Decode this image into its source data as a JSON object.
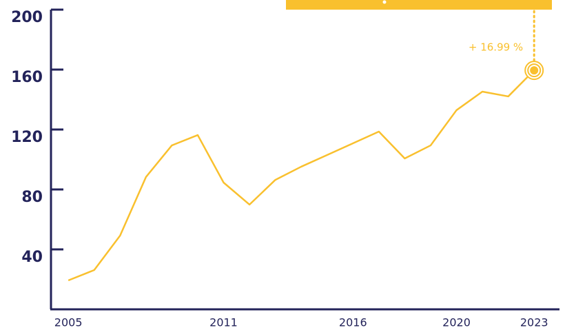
{
  "chart_data": {
    "type": "line",
    "x": [
      2005,
      2006,
      2007,
      2008,
      2009,
      2010,
      2011,
      2012,
      2013,
      2014,
      2015,
      2016,
      2017,
      2018,
      2019,
      2020,
      2021,
      2022,
      2023
    ],
    "values": [
      19.3,
      26.2,
      49.2,
      88.3,
      109.4,
      116.3,
      84.6,
      69.9,
      86.4,
      95.2,
      103,
      110.8,
      118.6,
      100.7,
      109.4,
      132.9,
      145.3,
      142.1,
      159.5
    ],
    "color": "#f9c02e",
    "xlim": [
      2004.33,
      2023.98
    ],
    "xticks": [
      2005,
      2011,
      2016,
      2020,
      2023
    ],
    "ylim": [
      0,
      200
    ],
    "yticks": [
      40,
      80,
      120,
      160,
      200
    ],
    "annotation": "+ 16.99 %"
  }
}
